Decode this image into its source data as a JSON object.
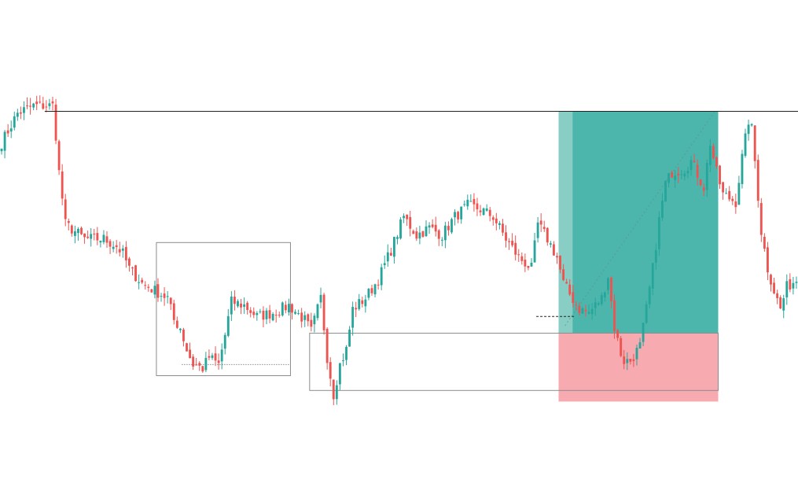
{
  "colors": {
    "up": "#26a69a",
    "down": "#ef5350",
    "profit_zone": "#26a69a",
    "profit_zone_light": "#8fd0c6",
    "loss_zone": "#f8a5ad",
    "box_stroke": "#8c8c8c",
    "line": "#222222",
    "background": "#ffffff"
  },
  "chart_data": {
    "type": "candlestick",
    "title": "",
    "xlabel": "",
    "ylabel": "",
    "grid": false,
    "legend": "none",
    "bar_count": 250,
    "ylim": [
      0,
      100
    ],
    "close_path": [
      [
        0,
        78
      ],
      [
        5,
        86
      ],
      [
        10,
        88
      ],
      [
        16,
        88
      ],
      [
        17,
        80
      ],
      [
        18,
        70
      ],
      [
        20,
        56
      ],
      [
        26,
        52
      ],
      [
        32,
        52
      ],
      [
        36,
        50
      ],
      [
        38,
        48
      ],
      [
        40,
        44
      ],
      [
        44,
        40
      ],
      [
        48,
        38
      ],
      [
        52,
        36
      ],
      [
        54,
        30
      ],
      [
        56,
        28
      ],
      [
        58,
        22
      ],
      [
        60,
        18
      ],
      [
        63,
        17
      ],
      [
        65,
        20
      ],
      [
        68,
        18
      ],
      [
        70,
        26
      ],
      [
        72,
        35
      ],
      [
        76,
        34
      ],
      [
        80,
        31
      ],
      [
        85,
        32
      ],
      [
        90,
        34
      ],
      [
        95,
        30
      ],
      [
        97,
        27
      ],
      [
        100,
        36
      ],
      [
        102,
        20
      ],
      [
        104,
        10
      ],
      [
        106,
        18
      ],
      [
        108,
        22
      ],
      [
        110,
        33
      ],
      [
        114,
        36
      ],
      [
        118,
        41
      ],
      [
        122,
        49
      ],
      [
        126,
        58
      ],
      [
        130,
        53
      ],
      [
        134,
        55
      ],
      [
        138,
        53
      ],
      [
        142,
        58
      ],
      [
        146,
        61
      ],
      [
        150,
        60
      ],
      [
        154,
        58
      ],
      [
        158,
        52
      ],
      [
        162,
        47
      ],
      [
        166,
        44
      ],
      [
        168,
        56
      ],
      [
        171,
        52
      ],
      [
        174,
        47
      ],
      [
        176,
        40
      ],
      [
        178,
        37
      ],
      [
        181,
        33
      ],
      [
        184,
        32
      ],
      [
        186,
        34
      ],
      [
        188,
        36
      ],
      [
        190,
        42
      ],
      [
        192,
        28
      ],
      [
        194,
        21
      ],
      [
        195,
        19
      ],
      [
        197,
        19
      ],
      [
        200,
        23
      ],
      [
        202,
        33
      ],
      [
        204,
        44
      ],
      [
        206,
        57
      ],
      [
        208,
        67
      ],
      [
        210,
        70
      ],
      [
        214,
        71
      ],
      [
        216,
        73
      ],
      [
        220,
        66
      ],
      [
        222,
        78
      ],
      [
        224,
        70
      ],
      [
        226,
        64
      ],
      [
        230,
        62
      ],
      [
        232,
        74
      ],
      [
        234,
        84
      ],
      [
        234.5,
        86
      ],
      [
        236,
        73
      ],
      [
        238,
        54
      ],
      [
        240,
        44
      ],
      [
        242,
        38
      ],
      [
        244,
        33
      ],
      [
        246,
        39
      ],
      [
        249,
        41
      ]
    ],
    "annotations": {
      "horizontal_line_level": 86.5,
      "box_1": {
        "x_range": [
          49,
          91
        ],
        "y_range": [
          15,
          51
        ]
      },
      "box_2": {
        "x_range": [
          97,
          225
        ],
        "y_range": [
          11,
          26.5
        ]
      },
      "dotted_line_level": 18,
      "dashed_line_level": 31,
      "long_position": {
        "x_range": [
          175,
          225
        ],
        "entry": 26.5,
        "target": 86.5,
        "stop": 8
      }
    }
  }
}
